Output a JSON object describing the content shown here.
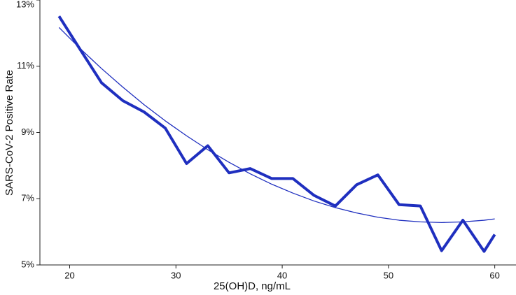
{
  "chart_data": {
    "type": "line",
    "x_label": "25(OH)D, ng/mL",
    "y_label": "SARS-CoV-2 Positive Rate",
    "xlim": [
      17.2,
      62
    ],
    "xticks": [
      20,
      30,
      40,
      50,
      60
    ],
    "ylim": [
      5,
      13
    ],
    "yticks": [
      {
        "value": 5,
        "label": "5%"
      },
      {
        "value": 7,
        "label": "7%"
      },
      {
        "value": 9,
        "label": "9%"
      },
      {
        "value": 11,
        "label": "11%"
      },
      {
        "value": 13,
        "label": "13%"
      }
    ],
    "series": [
      {
        "color": "#1f2fbf",
        "width": 4,
        "x": [
          19,
          21,
          23,
          25,
          27,
          29,
          31,
          33,
          35,
          37,
          39,
          41,
          43,
          45,
          47,
          49,
          51,
          53,
          55,
          57,
          59,
          60
        ],
        "values": [
          12.51,
          11.5,
          10.5,
          9.96,
          9.62,
          9.13,
          8.06,
          8.6,
          7.78,
          7.91,
          7.61,
          7.61,
          7.1,
          6.78,
          7.42,
          7.72,
          6.82,
          6.78,
          5.43,
          6.35,
          5.41,
          5.92
        ]
      },
      {
        "color": "#1f2fbf",
        "width": 1.3,
        "x": [
          19,
          21,
          23,
          25,
          27,
          29,
          31,
          33,
          35,
          37,
          39,
          41,
          43,
          45,
          47,
          49,
          51,
          53,
          55,
          57,
          59,
          60
        ],
        "values": [
          12.17,
          11.53,
          10.93,
          10.37,
          9.84,
          9.35,
          8.9,
          8.48,
          8.1,
          7.75,
          7.44,
          7.17,
          6.93,
          6.73,
          6.57,
          6.44,
          6.35,
          6.3,
          6.28,
          6.3,
          6.35,
          6.39
        ]
      }
    ]
  }
}
